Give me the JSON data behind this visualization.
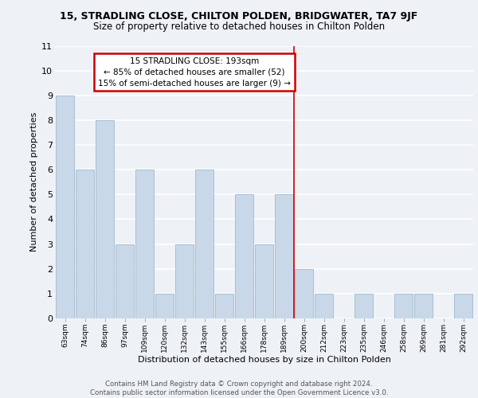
{
  "title1": "15, STRADLING CLOSE, CHILTON POLDEN, BRIDGWATER, TA7 9JF",
  "title2": "Size of property relative to detached houses in Chilton Polden",
  "xlabel": "Distribution of detached houses by size in Chilton Polden",
  "ylabel": "Number of detached properties",
  "categories": [
    "63sqm",
    "74sqm",
    "86sqm",
    "97sqm",
    "109sqm",
    "120sqm",
    "132sqm",
    "143sqm",
    "155sqm",
    "166sqm",
    "178sqm",
    "189sqm",
    "200sqm",
    "212sqm",
    "223sqm",
    "235sqm",
    "246sqm",
    "258sqm",
    "269sqm",
    "281sqm",
    "292sqm"
  ],
  "values": [
    9,
    6,
    8,
    3,
    6,
    1,
    3,
    6,
    1,
    5,
    3,
    5,
    2,
    1,
    0,
    1,
    0,
    1,
    1,
    0,
    1
  ],
  "bar_color": "#c8d8e8",
  "bar_edge_color": "#a0b8cc",
  "vline_x_index": 11.5,
  "vline_color": "#cc0000",
  "annotation_text": "15 STRADLING CLOSE: 193sqm\n← 85% of detached houses are smaller (52)\n15% of semi-detached houses are larger (9) →",
  "annotation_box_color": "#ffffff",
  "annotation_box_edgecolor": "#cc0000",
  "ylim": [
    0,
    11
  ],
  "yticks": [
    0,
    1,
    2,
    3,
    4,
    5,
    6,
    7,
    8,
    9,
    10,
    11
  ],
  "background_color": "#eef2f7",
  "grid_color": "#ffffff",
  "footer": "Contains HM Land Registry data © Crown copyright and database right 2024.\nContains public sector information licensed under the Open Government Licence v3.0."
}
